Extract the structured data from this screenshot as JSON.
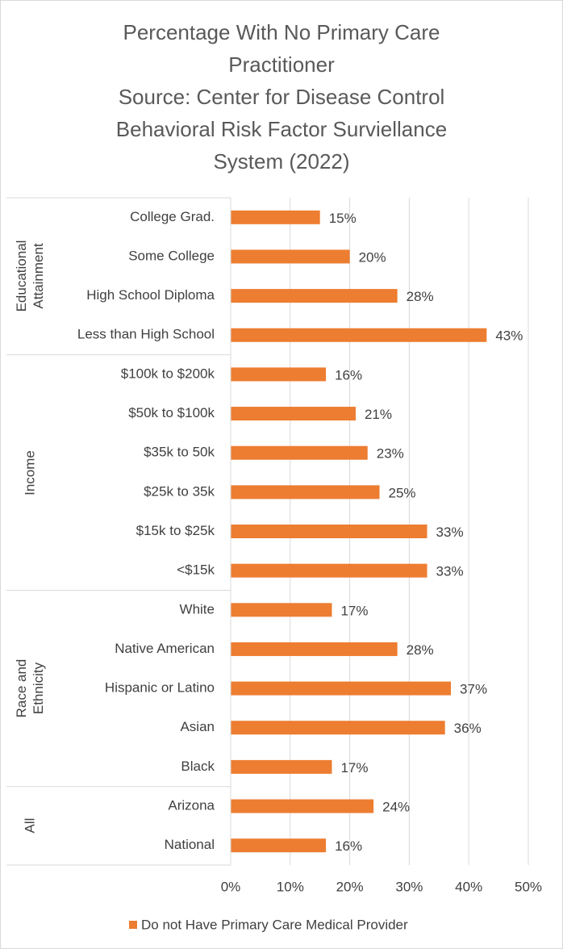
{
  "chart_data": {
    "type": "bar",
    "orientation": "horizontal",
    "title": "Percentage With No Primary Care Practitioner",
    "subtitle": "Source: Center for Disease Control Behavioral Risk Factor Surviellance System (2022)",
    "category_groups": [
      {
        "label": "Educational Attainment",
        "categories": [
          "College Grad.",
          "Some College",
          "High School Diploma",
          "Less than High School"
        ]
      },
      {
        "label": "Income",
        "categories": [
          "$100k to $200k",
          "$50k to $100k",
          "$35k to 50k",
          "$25k to 35k",
          "$15k to $25k",
          "<$15k"
        ]
      },
      {
        "label": "Race and Ethnicity",
        "categories": [
          "White",
          "Native American",
          "Hispanic or Latino",
          "Asian",
          "Black"
        ]
      },
      {
        "label": "All",
        "categories": [
          "Arizona",
          "National"
        ]
      }
    ],
    "series": [
      {
        "name": "Do not Have Primary Care Medical Provider",
        "color": "#ED7D31",
        "values": [
          15,
          20,
          28,
          43,
          16,
          21,
          23,
          25,
          33,
          33,
          17,
          28,
          37,
          36,
          17,
          24,
          16
        ],
        "value_labels": [
          "15%",
          "20%",
          "28%",
          "43%",
          "16%",
          "21%",
          "23%",
          "25%",
          "33%",
          "33%",
          "17%",
          "28%",
          "37%",
          "36%",
          "17%",
          "24%",
          "16%"
        ]
      }
    ],
    "xlim": [
      0,
      50
    ],
    "xticks": [
      {
        "value": 0,
        "label": "0%"
      },
      {
        "value": 10,
        "label": "10%"
      },
      {
        "value": 20,
        "label": "20%"
      },
      {
        "value": 30,
        "label": "30%"
      },
      {
        "value": 40,
        "label": "40%"
      },
      {
        "value": 50,
        "label": "50%"
      }
    ],
    "grid": true,
    "legend": "bottom"
  }
}
